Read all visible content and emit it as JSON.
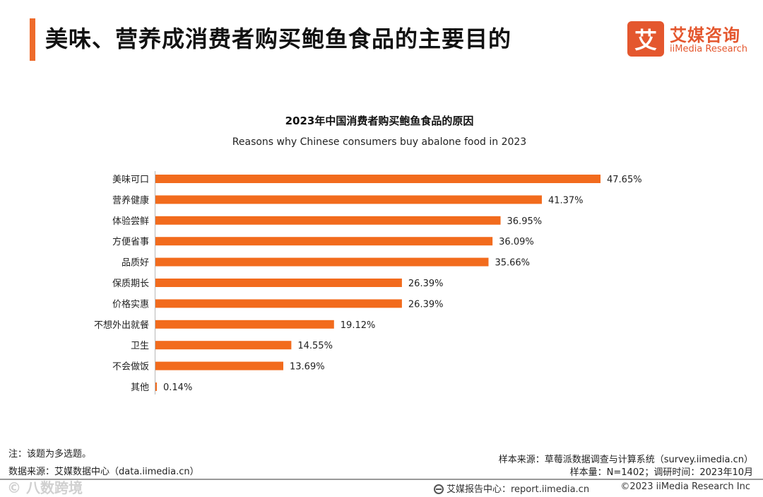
{
  "header": {
    "title": "美味、营养成消费者购买鲍鱼食品的主要目的",
    "logo_mark": "艾",
    "logo_cn": "艾媒咨询",
    "logo_en": "iiMedia Research"
  },
  "chart_data": {
    "type": "bar",
    "orientation": "horizontal",
    "title": "2023年中国消费者购买鲍鱼食品的原因",
    "subtitle": "Reasons why Chinese consumers buy abalone food in 2023",
    "categories": [
      "美味可口",
      "营养健康",
      "体验尝鲜",
      "方便省事",
      "品质好",
      "保质期长",
      "价格实惠",
      "不想外出就餐",
      "卫生",
      "不会做饭",
      "其他"
    ],
    "values": [
      47.65,
      41.37,
      36.95,
      36.09,
      35.66,
      26.39,
      26.39,
      19.12,
      14.55,
      13.69,
      0.14
    ],
    "value_labels": [
      "47.65%",
      "41.37%",
      "36.95%",
      "36.09%",
      "35.66%",
      "26.39%",
      "26.39%",
      "19.12%",
      "14.55%",
      "13.69%",
      "0.14%"
    ],
    "unit": "%",
    "xlim": [
      0,
      47.65
    ],
    "bar_color": "#f26b1d",
    "grid": false
  },
  "footer": {
    "note": "注：该题为多选题。",
    "data_source": "数据来源：艾媒数据中心（data.iimedia.cn）",
    "sample_source": "样本来源：草莓派数据调查与计算系统（survey.iimedia.cn）",
    "sample_info": "样本量：N=1402；调研时间：2023年10月",
    "report_center": "艾媒报告中心：report.iimedia.cn",
    "copyright": "©2023  iiMedia Research  Inc",
    "watermark": "© 八数跨境"
  },
  "colors": {
    "accent": "#ee6b2b",
    "brand": "#e4572e"
  }
}
